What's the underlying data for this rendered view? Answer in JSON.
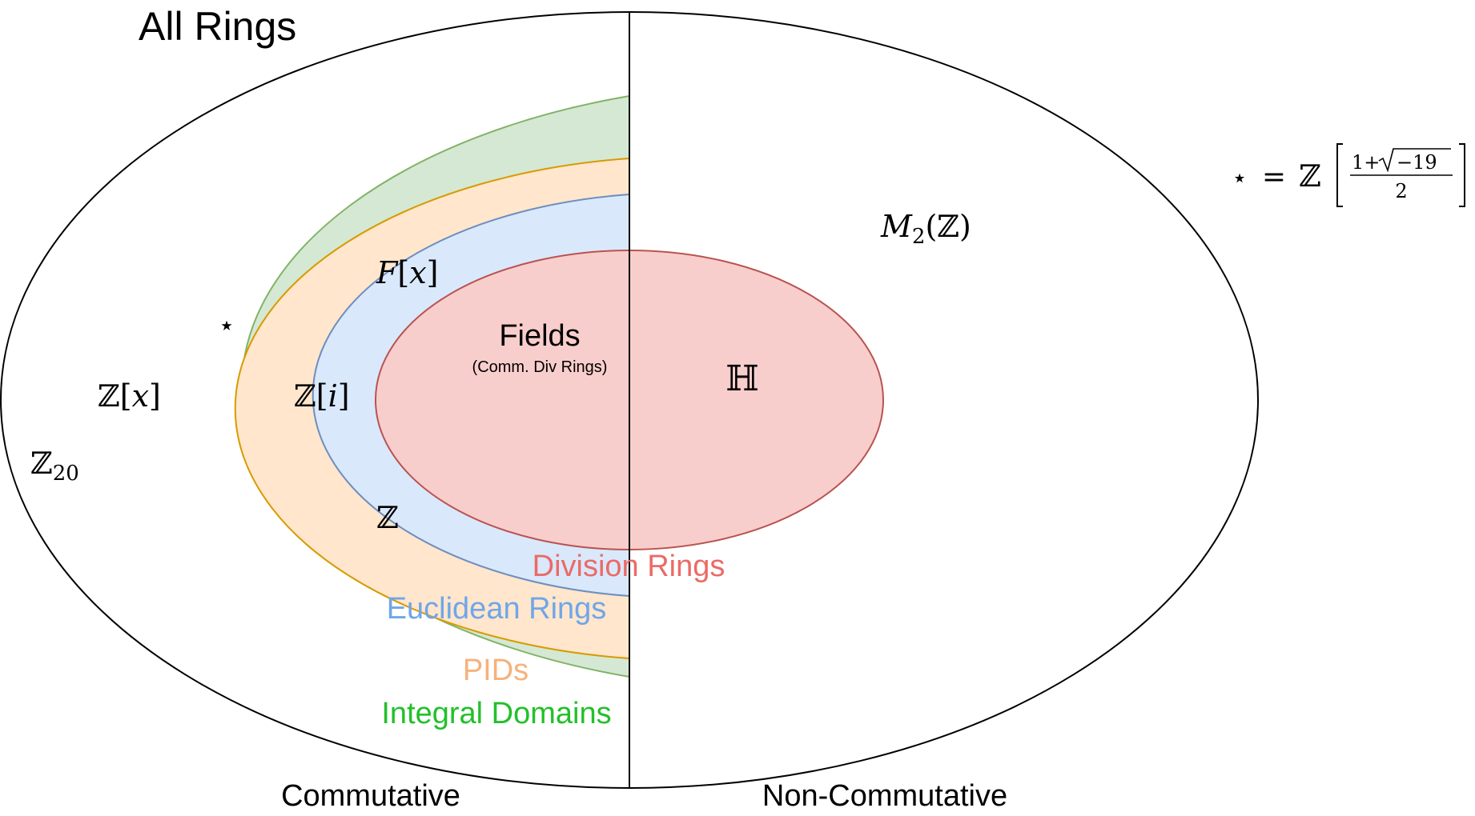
{
  "title": "All Rings",
  "sides": {
    "left": "Commutative",
    "right": "Non-Commutative"
  },
  "regions": {
    "integral_domains": {
      "label": "Integral Domains",
      "fill": "#d5e8d4",
      "stroke": "#82b366",
      "text_color": "#22c02a"
    },
    "pids": {
      "label": "PIDs",
      "fill": "#ffe6cc",
      "stroke": "#d79b00",
      "text_color": "#f5b27c"
    },
    "euclidean_rings": {
      "label": "Euclidean Rings",
      "fill": "#dae8fc",
      "stroke": "#6c8ebf",
      "text_color": "#6fa6e8"
    },
    "division_rings": {
      "label": "Division Rings",
      "fill": "#f8cecc",
      "stroke": "#b85450",
      "text_color": "#ea6b66"
    },
    "fields": {
      "label": "Fields",
      "sublabel": "(Comm. Div Rings)"
    }
  },
  "examples": {
    "z20": {
      "base": "ℤ",
      "sub": "20"
    },
    "zx": {
      "open": "ℤ[",
      "var": "x",
      "close": "]"
    },
    "star": "⋆",
    "zi": {
      "open": "ℤ[",
      "var": "i",
      "close": "]"
    },
    "fx": {
      "var": "F",
      "open": "[",
      "var2": "x",
      "close": "]"
    },
    "z": "ℤ",
    "quaternions": "ℍ",
    "matrix": {
      "var": "M",
      "sub": "2",
      "arg": "(ℤ)"
    }
  },
  "star_definition": {
    "star": "⋆",
    "equals": "=",
    "ring": "ℤ",
    "numerator_one": "1+",
    "radicand": "−19",
    "denominator": "2"
  }
}
